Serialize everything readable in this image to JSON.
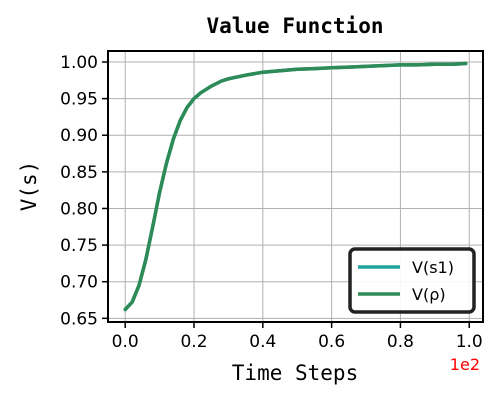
{
  "chart_data": {
    "type": "line",
    "title": "Value Function",
    "xlabel": "Time Steps",
    "ylabel": "V(s)",
    "x_offset_label": "1e2",
    "xlim": [
      -0.05,
      1.04
    ],
    "ylim": [
      0.645,
      1.015
    ],
    "xticks": [
      0.0,
      0.2,
      0.4,
      0.6,
      0.8,
      1.0
    ],
    "xtick_labels": [
      "0.0",
      "0.2",
      "0.4",
      "0.6",
      "0.8",
      "1.0"
    ],
    "yticks": [
      0.65,
      0.7,
      0.75,
      0.8,
      0.85,
      0.9,
      0.95,
      1.0
    ],
    "ytick_labels": [
      "0.65",
      "0.70",
      "0.75",
      "0.80",
      "0.85",
      "0.90",
      "0.95",
      "1.00"
    ],
    "grid": true,
    "legend_position": "lower-right",
    "x": [
      0.0,
      0.02,
      0.04,
      0.06,
      0.08,
      0.1,
      0.12,
      0.14,
      0.16,
      0.18,
      0.2,
      0.22,
      0.25,
      0.28,
      0.3,
      0.35,
      0.4,
      0.45,
      0.5,
      0.55,
      0.6,
      0.65,
      0.7,
      0.75,
      0.8,
      0.85,
      0.9,
      0.95,
      0.99
    ],
    "series": [
      {
        "name": "V(s1)",
        "color": "#20a39e",
        "values": [
          0.662,
          0.672,
          0.695,
          0.73,
          0.775,
          0.822,
          0.862,
          0.895,
          0.92,
          0.938,
          0.95,
          0.958,
          0.967,
          0.974,
          0.977,
          0.982,
          0.986,
          0.988,
          0.99,
          0.991,
          0.992,
          0.993,
          0.994,
          0.995,
          0.996,
          0.996,
          0.997,
          0.997,
          0.998
        ]
      },
      {
        "name": "V(ρ)",
        "color": "#2e8b57",
        "values": [
          0.662,
          0.672,
          0.695,
          0.73,
          0.775,
          0.822,
          0.862,
          0.895,
          0.92,
          0.938,
          0.95,
          0.958,
          0.967,
          0.974,
          0.977,
          0.982,
          0.986,
          0.988,
          0.99,
          0.991,
          0.992,
          0.993,
          0.994,
          0.995,
          0.996,
          0.996,
          0.997,
          0.997,
          0.998
        ]
      }
    ]
  }
}
